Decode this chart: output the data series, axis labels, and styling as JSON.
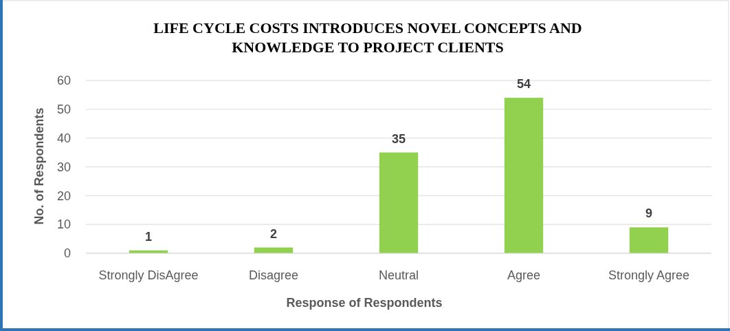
{
  "chart_data": {
    "type": "bar",
    "title": "LIFE CYCLE COSTS INTRODUCES NOVEL CONCEPTS AND KNOWLEDGE TO PROJECT CLIENTS",
    "categories": [
      "Strongly DisAgree",
      "Disagree",
      "Neutral",
      "Agree",
      "Strongly Agree"
    ],
    "values": [
      1,
      2,
      35,
      54,
      9
    ],
    "data_labels": true,
    "color": "#92d050",
    "xlabel": "Response of Respondents",
    "ylabel": "No. of Respondents",
    "ylim": [
      0,
      60
    ],
    "yticks": [
      0,
      10,
      20,
      30,
      40,
      50,
      60
    ],
    "grid": "y"
  }
}
